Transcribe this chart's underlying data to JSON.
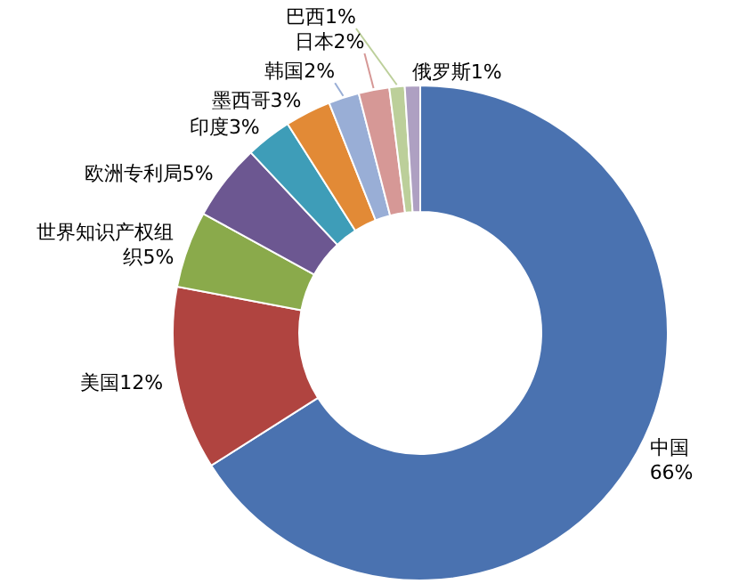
{
  "chart_data": {
    "type": "donut",
    "categories": [
      "中国",
      "美国",
      "世界知识产权组织",
      "欧洲专利局",
      "印度",
      "墨西哥",
      "韩国",
      "日本",
      "巴西",
      "俄罗斯"
    ],
    "values": [
      66,
      12,
      5,
      5,
      3,
      3,
      2,
      2,
      1,
      1
    ],
    "value_labels": [
      "66%",
      "12%",
      "5%",
      "5%",
      "3%",
      "3%",
      "2%",
      "2%",
      "1%",
      "1%"
    ],
    "colors": [
      "#4a72b0",
      "#b04440",
      "#8aaa4b",
      "#6c5791",
      "#3e9db8",
      "#e28a36",
      "#99aed6",
      "#d69896",
      "#bccf9a",
      "#aea0c2"
    ]
  }
}
